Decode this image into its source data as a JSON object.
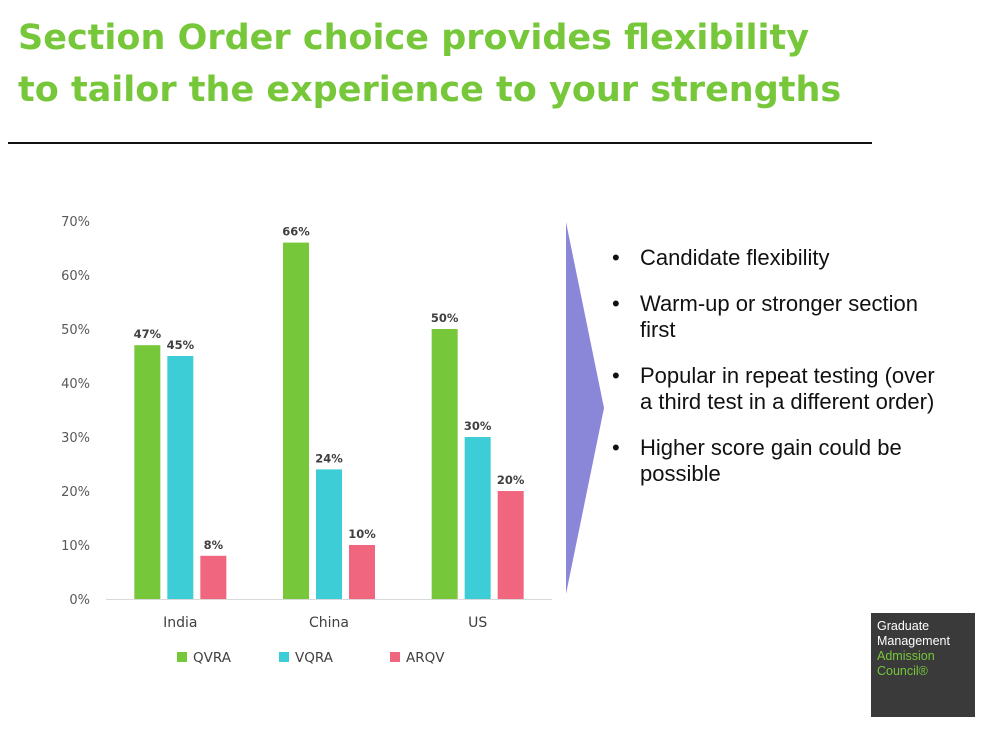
{
  "title": {
    "line1": "Section Order choice provides flexibility",
    "line2": "to tailor the experience to your strengths"
  },
  "chart_data": {
    "type": "bar",
    "categories": [
      "India",
      "China",
      "US"
    ],
    "series": [
      {
        "name": "QVRA",
        "values": [
          47,
          66,
          50
        ],
        "labels": [
          "47%",
          "66%",
          "50%"
        ],
        "color": "#76c73a"
      },
      {
        "name": "VQRA",
        "values": [
          45,
          24,
          30
        ],
        "labels": [
          "45%",
          "24%",
          "30%"
        ],
        "color": "#3dcdd6"
      },
      {
        "name": "ARQV",
        "values": [
          8,
          10,
          20
        ],
        "labels": [
          "8%",
          "10%",
          "20%"
        ],
        "color": "#f0667f"
      }
    ],
    "ylim": [
      0,
      70
    ],
    "yticks": [
      0,
      10,
      20,
      30,
      40,
      50,
      60,
      70
    ],
    "ytick_labels": [
      "0%",
      "10%",
      "20%",
      "30%",
      "40%",
      "50%",
      "60%",
      "70%"
    ],
    "grid": false,
    "legend_position": "bottom"
  },
  "arrow_color": "#8b87d8",
  "bullets": [
    "Candidate flexibility",
    "Warm-up or stronger section first",
    "Popular in repeat testing (over a third test in a different order)",
    "Higher score gain could be possible"
  ],
  "bullet_marker": "•",
  "logo": {
    "line1": "Graduate",
    "line2": "Management",
    "line3": "Admission",
    "line4": "Council®"
  }
}
